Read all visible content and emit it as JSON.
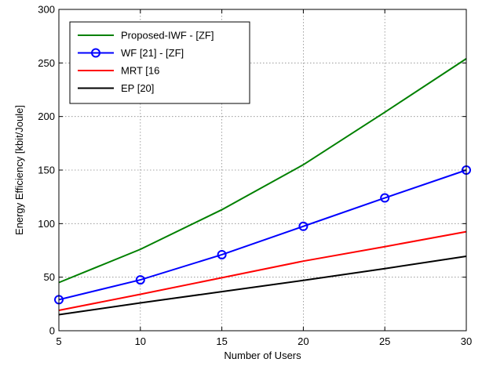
{
  "chart_data": {
    "type": "line",
    "title": "",
    "xlabel": "Number of Users",
    "ylabel": "Energy Efficiency [kbit/Joule]",
    "xlim": [
      5,
      30
    ],
    "ylim": [
      0,
      300
    ],
    "x_ticks": [
      5,
      10,
      15,
      20,
      25,
      30
    ],
    "y_ticks": [
      0,
      50,
      100,
      150,
      200,
      250,
      300
    ],
    "grid": true,
    "legend_position": "top-left",
    "x": [
      5,
      10,
      15,
      20,
      25,
      30
    ],
    "series": [
      {
        "name": "Proposed-IWF - [ZF]",
        "color": "#008000",
        "marker": "none",
        "values": [
          45,
          76,
          113,
          155,
          204,
          254
        ]
      },
      {
        "name": "WF [21] - [ZF]",
        "color": "#0000ff",
        "marker": "circle",
        "values": [
          29,
          47.5,
          71,
          97.5,
          124,
          150
        ]
      },
      {
        "name": "MRT [16",
        "color": "#ff0000",
        "marker": "none",
        "values": [
          19,
          34,
          49.5,
          65,
          78.5,
          92.5
        ]
      },
      {
        "name": "EP [20]",
        "color": "#000000",
        "marker": "none",
        "values": [
          15,
          26,
          36.5,
          47,
          58,
          69.5
        ]
      }
    ]
  }
}
